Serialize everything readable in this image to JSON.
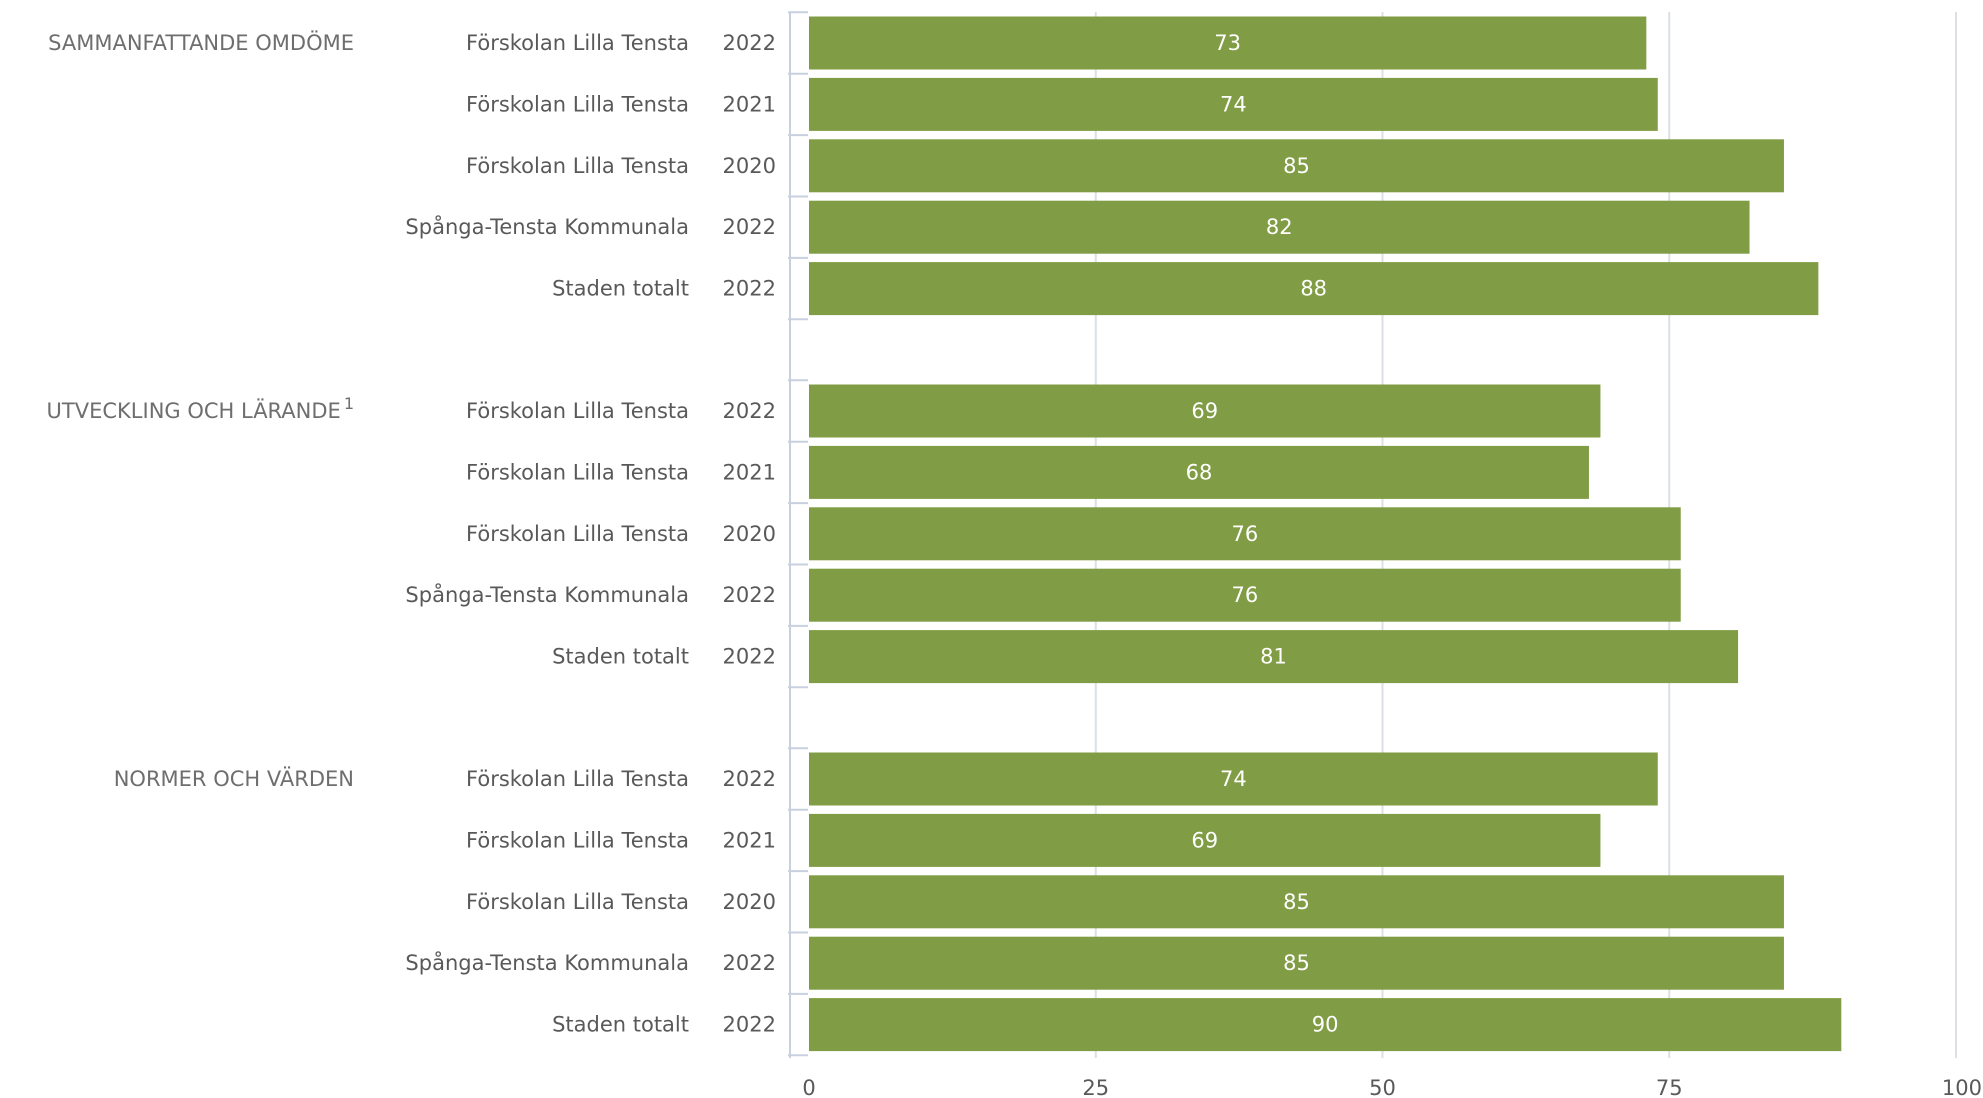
{
  "chart_data": {
    "type": "bar",
    "orientation": "horizontal",
    "xlim": [
      0,
      100
    ],
    "x_ticks": [
      "0",
      "25",
      "50",
      "75",
      "100"
    ],
    "grid": true,
    "bar_color": "#809c44",
    "groups": [
      {
        "label": "SAMMANFATTANDE OMDÖME",
        "superscript": "",
        "rows": [
          {
            "category": "Förskolan Lilla Tensta",
            "year": "2022",
            "value": 73
          },
          {
            "category": "Förskolan Lilla Tensta",
            "year": "2021",
            "value": 74
          },
          {
            "category": "Förskolan Lilla Tensta",
            "year": "2020",
            "value": 85
          },
          {
            "category": "Spånga-Tensta Kommunala",
            "year": "2022",
            "value": 82
          },
          {
            "category": "Staden totalt",
            "year": "2022",
            "value": 88
          }
        ]
      },
      {
        "label": "UTVECKLING OCH LÄRANDE",
        "superscript": "1",
        "rows": [
          {
            "category": "Förskolan Lilla Tensta",
            "year": "2022",
            "value": 69
          },
          {
            "category": "Förskolan Lilla Tensta",
            "year": "2021",
            "value": 68
          },
          {
            "category": "Förskolan Lilla Tensta",
            "year": "2020",
            "value": 76
          },
          {
            "category": "Spånga-Tensta Kommunala",
            "year": "2022",
            "value": 76
          },
          {
            "category": "Staden totalt",
            "year": "2022",
            "value": 81
          }
        ]
      },
      {
        "label": "NORMER OCH VÄRDEN",
        "superscript": "",
        "rows": [
          {
            "category": "Förskolan Lilla Tensta",
            "year": "2022",
            "value": 74
          },
          {
            "category": "Förskolan Lilla Tensta",
            "year": "2021",
            "value": 69
          },
          {
            "category": "Förskolan Lilla Tensta",
            "year": "2020",
            "value": 85
          },
          {
            "category": "Spånga-Tensta Kommunala",
            "year": "2022",
            "value": 85
          },
          {
            "category": "Staden totalt",
            "year": "2022",
            "value": 90
          }
        ]
      }
    ]
  }
}
